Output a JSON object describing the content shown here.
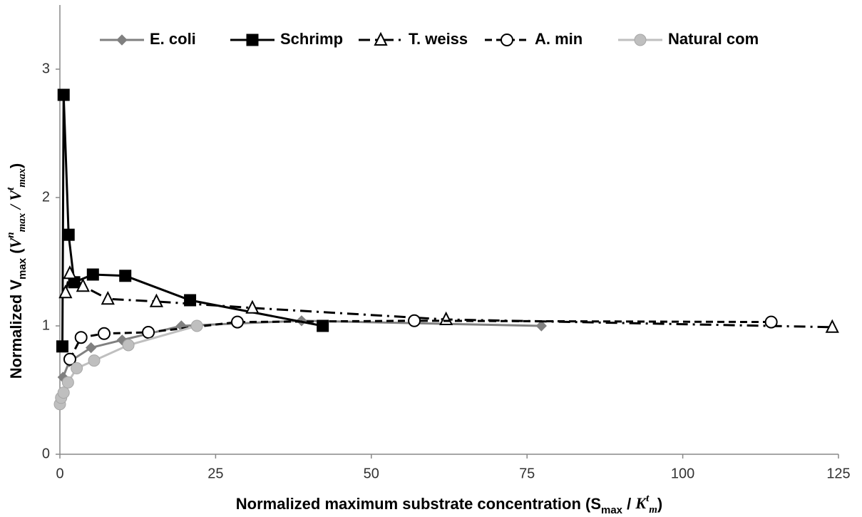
{
  "chart_data": {
    "type": "line",
    "xlabel_parts": [
      "Normalized maximum substrate concentration (S",
      "max",
      " / ",
      "K",
      "t",
      "m",
      ")"
    ],
    "ylabel_parts": [
      "Normalized V",
      "max",
      " (",
      "V",
      "n",
      "max",
      " / ",
      "V",
      "t",
      "max",
      ")"
    ],
    "xlim": [
      0,
      125
    ],
    "xticks": [
      0,
      25,
      50,
      75,
      100,
      125
    ],
    "ylim": [
      0,
      3.5
    ],
    "yticks": [
      0,
      1,
      2,
      3
    ],
    "series": [
      {
        "name": "E. coli",
        "color": "#808080",
        "marker": "diamond",
        "dash": "solid",
        "x": [
          0.5,
          1.5,
          5,
          10,
          19.5,
          38.8,
          77.3
        ],
        "values": [
          0.6,
          0.72,
          0.83,
          0.89,
          1.0,
          1.04,
          1.0
        ]
      },
      {
        "name": "Schrimp",
        "color": "#000000",
        "marker": "square",
        "dash": "solid",
        "x": [
          0.4,
          0.6,
          1.4,
          2.3,
          5.3,
          10.5,
          20.9,
          42.2
        ],
        "values": [
          0.84,
          2.8,
          1.71,
          1.34,
          1.4,
          1.39,
          1.2,
          1.0
        ]
      },
      {
        "name": "T. weiss",
        "color": "#000000",
        "marker": "triangle-open",
        "dash": "dashdot",
        "x": [
          0.9,
          1.6,
          3.7,
          7.7,
          15.5,
          30.9,
          62,
          124
        ],
        "values": [
          1.26,
          1.41,
          1.31,
          1.21,
          1.19,
          1.14,
          1.05,
          0.99
        ]
      },
      {
        "name": "A. min",
        "color": "#000000",
        "marker": "circle-open",
        "dash": "dash",
        "x": [
          1.6,
          3.4,
          7.1,
          14.2,
          28.5,
          56.9,
          114.2
        ],
        "values": [
          0.74,
          0.91,
          0.94,
          0.95,
          1.03,
          1.04,
          1.03
        ]
      },
      {
        "name": "Natural com",
        "color": "#bfbfbf",
        "marker": "circle",
        "dash": "solid",
        "x": [
          0,
          0.2,
          0.6,
          1.3,
          2.7,
          5.5,
          11,
          22
        ],
        "values": [
          0.39,
          0.44,
          0.48,
          0.56,
          0.67,
          0.73,
          0.85,
          1.0
        ]
      }
    ]
  }
}
